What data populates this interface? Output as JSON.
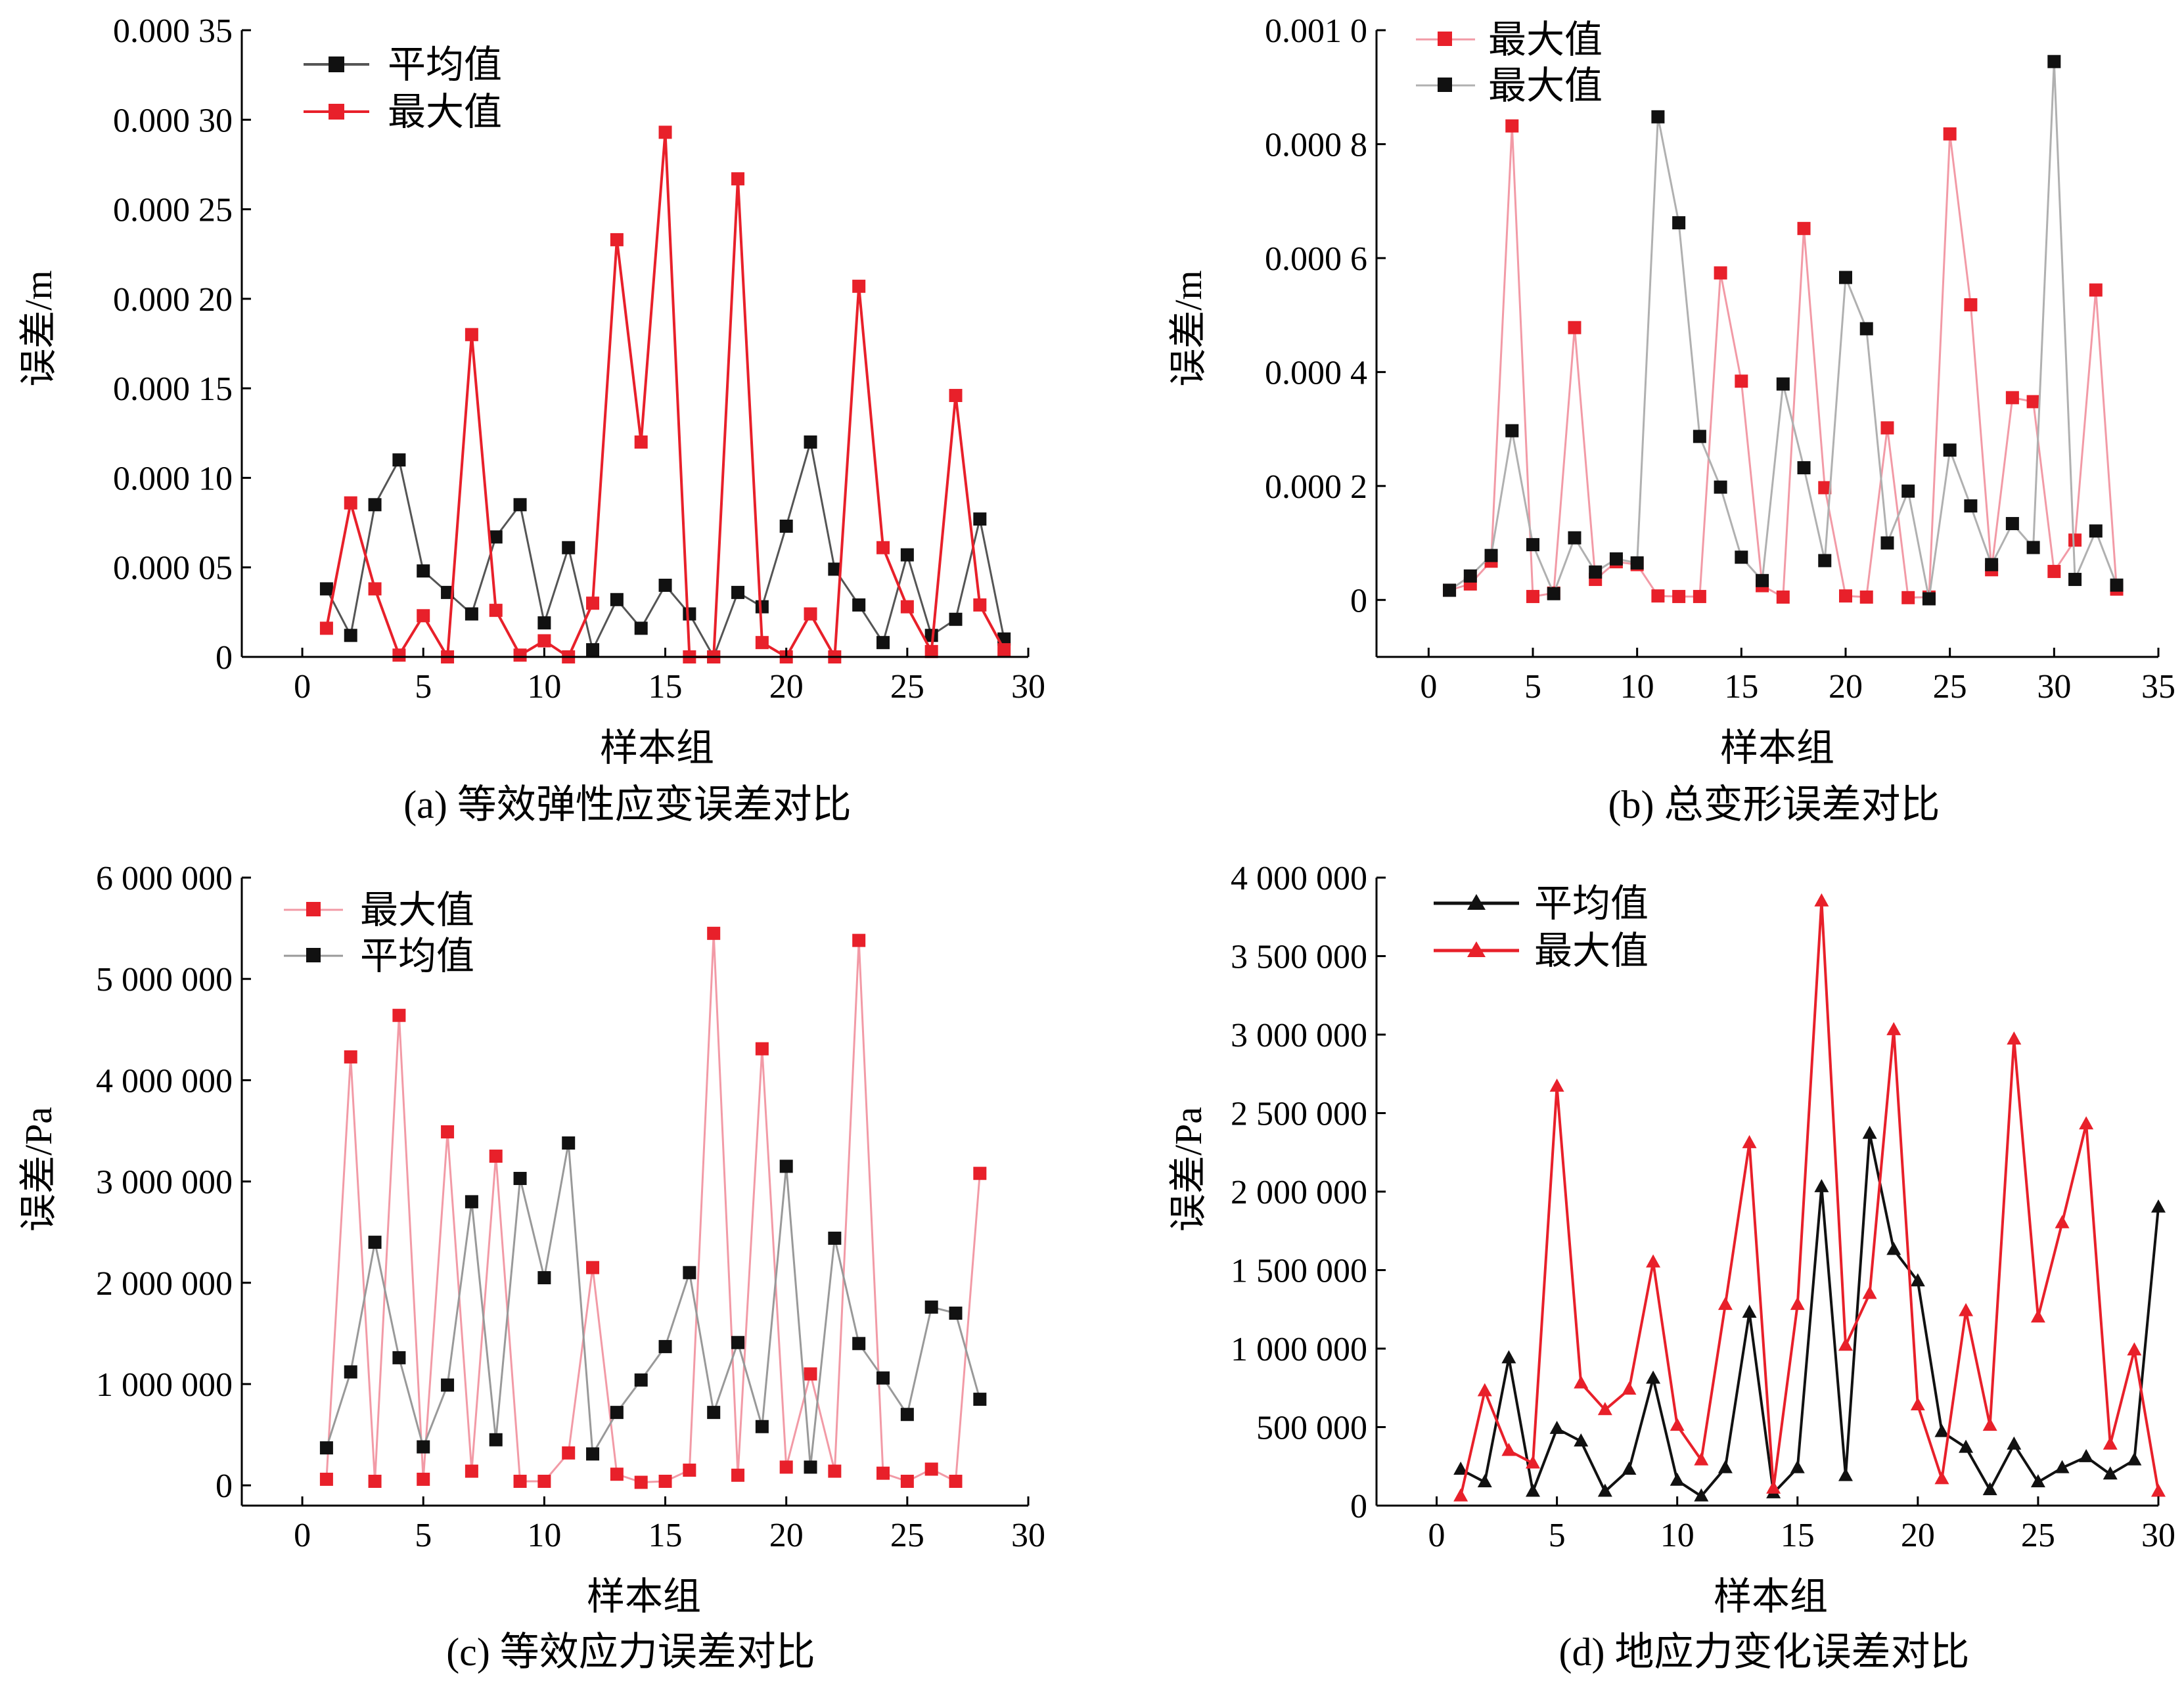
{
  "colors": {
    "red": "#e8202a",
    "black": "#111111",
    "pink": "#f29aa6",
    "gray": "#999999"
  },
  "chart_data": [
    {
      "type": "line",
      "caption": "(a) 等效弹性应变误差对比",
      "xlabel": "样本组",
      "ylabel": "误差/m",
      "xlim": [
        -2.5,
        30
      ],
      "ylim": [
        0,
        0.00035
      ],
      "xticks": [
        0,
        5,
        10,
        15,
        20,
        25,
        30
      ],
      "xtick_labels": [
        "0",
        "5",
        "10",
        "15",
        "20",
        "25",
        "30"
      ],
      "yticks": [
        0,
        5e-05,
        0.0001,
        0.00015,
        0.0002,
        0.00025,
        0.0003,
        0.00035
      ],
      "ytick_labels": [
        "0",
        "0.000 05",
        "0.000 10",
        "0.000 15",
        "0.000 20",
        "0.000 25",
        "0.000 30",
        "0.000 35"
      ],
      "legend_position": "top-left",
      "series": [
        {
          "name": "平均值",
          "color": "#111111",
          "line_color": "#555555",
          "marker": "square",
          "x": [
            1,
            2,
            3,
            4,
            5,
            6,
            7,
            8,
            9,
            10,
            11,
            12,
            13,
            14,
            15,
            16,
            17,
            18,
            19,
            20,
            21,
            22,
            23,
            24,
            25,
            26,
            27,
            28,
            29
          ],
          "values": [
            3.8e-05,
            1.2e-05,
            8.5e-05,
            0.00011,
            4.8e-05,
            3.6e-05,
            2.4e-05,
            6.7e-05,
            8.5e-05,
            1.9e-05,
            6.1e-05,
            4e-06,
            3.2e-05,
            1.6e-05,
            4e-05,
            2.4e-05,
            0.0,
            3.6e-05,
            2.8e-05,
            7.3e-05,
            0.00012,
            4.9e-05,
            2.9e-05,
            8e-06,
            5.7e-05,
            1.2e-05,
            2.1e-05,
            7.7e-05,
            1e-05
          ]
        },
        {
          "name": "最大值",
          "color": "#e8202a",
          "line_color": "#e8202a",
          "marker": "square",
          "x": [
            1,
            2,
            3,
            4,
            5,
            6,
            7,
            8,
            9,
            10,
            11,
            12,
            13,
            14,
            15,
            16,
            17,
            18,
            19,
            20,
            21,
            22,
            23,
            24,
            25,
            26,
            27,
            28,
            29
          ],
          "values": [
            1.6e-05,
            8.6e-05,
            3.8e-05,
            1e-06,
            2.3e-05,
            0.0,
            0.00018,
            2.6e-05,
            1e-06,
            9e-06,
            0.0,
            3e-05,
            0.000233,
            0.00012,
            0.000293,
            0.0,
            0.0,
            0.000267,
            8e-06,
            0.0,
            2.4e-05,
            0.0,
            0.000207,
            6.1e-05,
            2.8e-05,
            3e-06,
            0.000146,
            2.9e-05,
            4e-06
          ]
        }
      ]
    },
    {
      "type": "line",
      "caption": "(b) 总变形误差对比",
      "xlabel": "样本组",
      "ylabel": "误差/m",
      "xlim": [
        -2.5,
        35
      ],
      "ylim": [
        -0.0001,
        0.001
      ],
      "xticks": [
        0,
        5,
        10,
        15,
        20,
        25,
        30,
        35
      ],
      "xtick_labels": [
        "0",
        "5",
        "10",
        "15",
        "20",
        "25",
        "30",
        "35"
      ],
      "yticks": [
        0,
        0.0002,
        0.0004,
        0.0006,
        0.0008,
        0.001
      ],
      "ytick_labels": [
        "0",
        "0.000 2",
        "0.000 4",
        "0.000 6",
        "0.000 8",
        "0.001 0"
      ],
      "legend_position": "top-left",
      "series": [
        {
          "name": "最大值",
          "color": "#e8202a",
          "line_color": "#f29aa6",
          "marker": "square",
          "x": [
            1,
            2,
            3,
            4,
            5,
            6,
            7,
            8,
            9,
            10,
            11,
            12,
            13,
            14,
            15,
            16,
            17,
            18,
            19,
            20,
            21,
            22,
            23,
            24,
            25,
            26,
            27,
            28,
            29,
            30,
            31,
            32,
            33
          ],
          "values": [
            1.7e-05,
            2.8e-05,
            6.8e-05,
            0.000832,
            6e-06,
            1.2e-05,
            0.000478,
            3.6e-05,
            6.7e-05,
            6.2e-05,
            7e-06,
            6e-06,
            6e-06,
            0.000574,
            0.000384,
            2.5e-05,
            5e-06,
            0.000652,
            0.000197,
            7e-06,
            5e-06,
            0.000302,
            4e-06,
            5e-06,
            0.000818,
            0.000518,
            5.3e-05,
            0.000355,
            0.000348,
            5e-05,
            0.000105,
            0.000544,
            1.9e-05
          ]
        },
        {
          "name": "最大值",
          "color": "#111111",
          "line_color": "#b0b0b0",
          "marker": "square",
          "x": [
            1,
            2,
            3,
            4,
            5,
            6,
            7,
            8,
            9,
            10,
            11,
            12,
            13,
            14,
            15,
            16,
            17,
            18,
            19,
            20,
            21,
            22,
            23,
            24,
            25,
            26,
            27,
            28,
            29,
            30,
            31,
            32,
            33
          ],
          "values": [
            1.7e-05,
            4.2e-05,
            7.8e-05,
            0.000297,
            9.7e-05,
            1.1e-05,
            0.000109,
            4.9e-05,
            7.2e-05,
            6.5e-05,
            0.000848,
            0.000662,
            0.000287,
            0.000198,
            7.5e-05,
            3.4e-05,
            0.000379,
            0.000232,
            6.9e-05,
            0.000566,
            0.000476,
            0.0001,
            0.000191,
            2e-06,
            0.000263,
            0.000165,
            6.2e-05,
            0.000134,
            9.2e-05,
            0.000945,
            3.6e-05,
            0.000121,
            2.6e-05
          ]
        }
      ]
    },
    {
      "type": "line",
      "caption": "(c) 等效应力误差对比",
      "xlabel": "样本组",
      "ylabel": "误差/Pa",
      "xlim": [
        -2.5,
        30
      ],
      "ylim": [
        -200000,
        6000000
      ],
      "xticks": [
        0,
        5,
        10,
        15,
        20,
        25,
        30
      ],
      "xtick_labels": [
        "0",
        "5",
        "10",
        "15",
        "20",
        "25",
        "30"
      ],
      "yticks": [
        0,
        1000000,
        2000000,
        3000000,
        4000000,
        5000000,
        6000000
      ],
      "ytick_labels": [
        "0",
        "1 000 000",
        "2 000 000",
        "3 000 000",
        "4 000 000",
        "5 000 000",
        "6 000 000"
      ],
      "legend_position": "top-left",
      "series": [
        {
          "name": "最大值",
          "color": "#e8202a",
          "line_color": "#f29aa6",
          "marker": "square",
          "x": [
            1,
            2,
            3,
            4,
            5,
            6,
            7,
            8,
            9,
            10,
            11,
            12,
            13,
            14,
            15,
            16,
            17,
            18,
            19,
            20,
            21,
            22,
            23,
            24,
            25,
            26,
            27,
            28
          ],
          "values": [
            60000,
            4230000,
            40000,
            4640000,
            60000,
            3490000,
            140000,
            3250000,
            40000,
            40000,
            320000,
            2150000,
            110000,
            30000,
            40000,
            150000,
            5450000,
            100000,
            4310000,
            180000,
            1100000,
            140000,
            5380000,
            120000,
            40000,
            160000,
            40000,
            3080000
          ]
        },
        {
          "name": "平均值",
          "color": "#111111",
          "line_color": "#999999",
          "marker": "square",
          "x": [
            1,
            2,
            3,
            4,
            5,
            6,
            7,
            8,
            9,
            10,
            11,
            12,
            13,
            14,
            15,
            16,
            17,
            18,
            19,
            20,
            21,
            22,
            23,
            24,
            25,
            26,
            27,
            28
          ],
          "values": [
            370000,
            1120000,
            2400000,
            1260000,
            380000,
            990000,
            2800000,
            450000,
            3030000,
            2050000,
            3380000,
            310000,
            720000,
            1040000,
            1370000,
            2100000,
            720000,
            1410000,
            580000,
            3150000,
            180000,
            2440000,
            1400000,
            1060000,
            700000,
            1760000,
            1700000,
            850000
          ]
        }
      ]
    },
    {
      "type": "line",
      "caption": "(d) 地应力变化误差对比",
      "xlabel": "样本组",
      "ylabel": "误差/Pa",
      "xlim": [
        -2.5,
        30
      ],
      "ylim": [
        0,
        4000000
      ],
      "xticks": [
        0,
        5,
        10,
        15,
        20,
        25,
        30
      ],
      "xtick_labels": [
        "0",
        "5",
        "10",
        "15",
        "20",
        "25",
        "30"
      ],
      "yticks": [
        0,
        500000,
        1000000,
        1500000,
        2000000,
        2500000,
        3000000,
        3500000,
        4000000
      ],
      "ytick_labels": [
        "0",
        "500 000",
        "1 000 000",
        "1 500 000",
        "2 000 000",
        "2 500 000",
        "3 000 000",
        "3 500 000",
        "4 000 000"
      ],
      "legend_position": "top-left",
      "series": [
        {
          "name": "平均值",
          "color": "#111111",
          "line_color": "#111111",
          "marker": "triangle",
          "x": [
            1,
            2,
            3,
            4,
            5,
            6,
            7,
            8,
            9,
            10,
            11,
            12,
            13,
            14,
            15,
            16,
            17,
            18,
            19,
            20,
            21,
            22,
            23,
            24,
            25,
            26,
            27,
            28,
            29,
            30
          ],
          "values": [
            230000,
            150000,
            940000,
            90000,
            490000,
            410000,
            90000,
            230000,
            810000,
            160000,
            60000,
            240000,
            1230000,
            80000,
            240000,
            2030000,
            190000,
            2370000,
            1630000,
            1430000,
            470000,
            370000,
            100000,
            390000,
            150000,
            240000,
            310000,
            200000,
            290000,
            1900000
          ]
        },
        {
          "name": "最大值",
          "color": "#e8202a",
          "line_color": "#e8202a",
          "marker": "triangle",
          "x": [
            1,
            2,
            3,
            4,
            5,
            6,
            7,
            8,
            9,
            10,
            11,
            12,
            13,
            14,
            15,
            16,
            17,
            18,
            19,
            20,
            21,
            22,
            23,
            24,
            25,
            26,
            27,
            28,
            29,
            30
          ],
          "values": [
            60000,
            730000,
            350000,
            270000,
            2670000,
            780000,
            610000,
            740000,
            1550000,
            510000,
            290000,
            1280000,
            2310000,
            110000,
            1280000,
            3850000,
            1020000,
            1350000,
            3030000,
            640000,
            170000,
            1240000,
            510000,
            2970000,
            1200000,
            1800000,
            2430000,
            390000,
            990000,
            90000
          ]
        }
      ]
    }
  ]
}
